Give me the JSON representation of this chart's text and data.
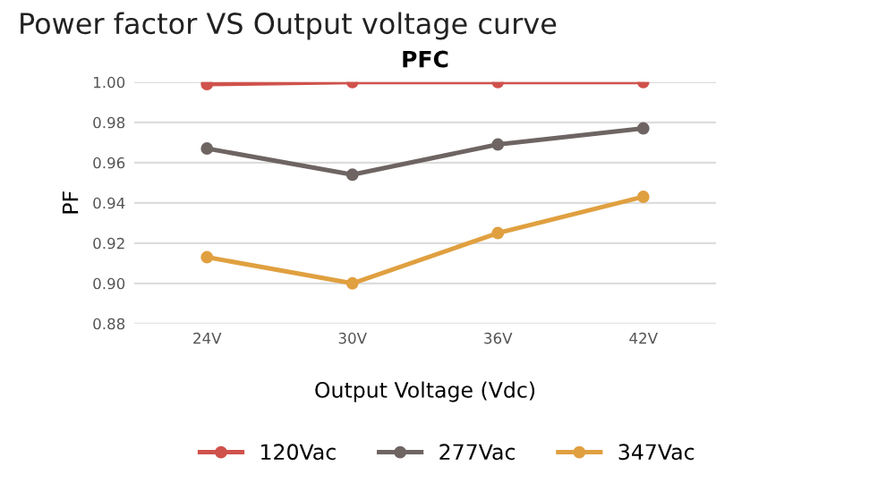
{
  "chart_data": {
    "type": "line",
    "title": "Power factor VS Output voltage curve",
    "subtitle": "PFC",
    "xlabel": "Output Voltage (Vdc)",
    "ylabel": "PF",
    "categories": [
      "24V",
      "30V",
      "36V",
      "42V"
    ],
    "series": [
      {
        "name": "120Vac",
        "color": "#d0524c",
        "values": [
          0.999,
          1.0,
          1.0,
          1.0
        ]
      },
      {
        "name": "277Vac",
        "color": "#6e6563",
        "values": [
          0.967,
          0.954,
          0.969,
          0.977
        ]
      },
      {
        "name": "347Vac",
        "color": "#e0a040",
        "values": [
          0.913,
          0.9,
          0.925,
          0.943
        ]
      }
    ],
    "ylim": [
      0.88,
      1.0
    ],
    "yticks": [
      0.88,
      {
        "value": 0.9,
        "label": "0.90"
      },
      0.92,
      0.94,
      0.96,
      0.98,
      {
        "value": 1.0,
        "label": "1.00"
      }
    ],
    "grid": "y",
    "legend": "bottom",
    "marker": "circle",
    "line_style": "solid"
  }
}
